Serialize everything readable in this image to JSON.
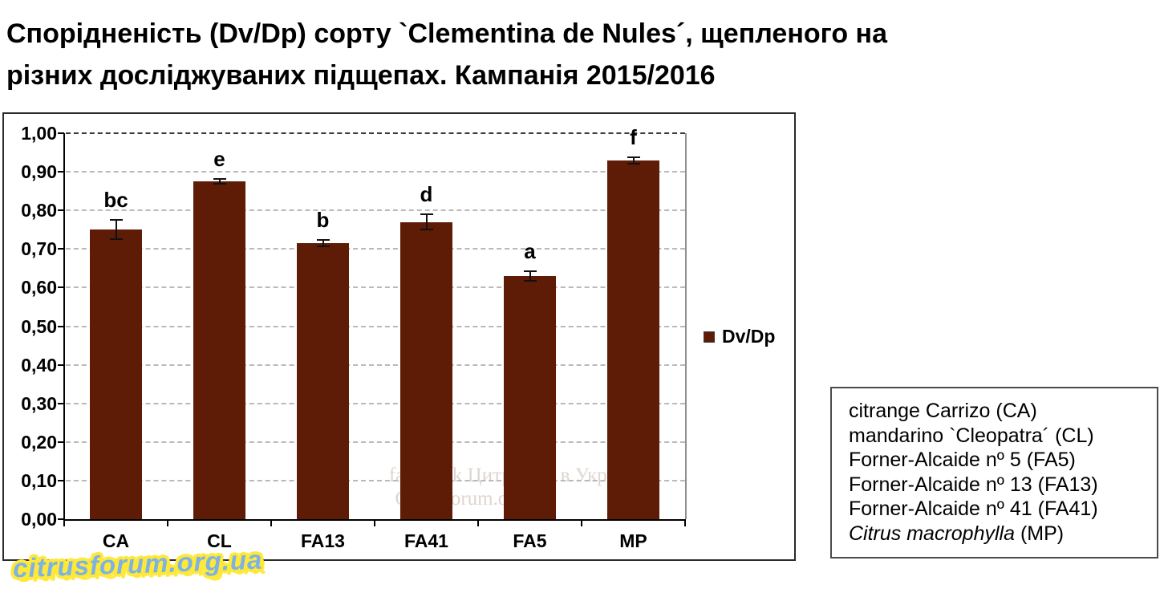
{
  "title_lines": [
    "Спорідненість (Dv/Dp) сорту `Clementina de Nules´, щепленого на",
    "різних досліджуваних підщепах. Кампанія 2015/2016"
  ],
  "chart_data": {
    "type": "bar",
    "categories": [
      "CA",
      "CL",
      "FA13",
      "FA41",
      "FA5",
      "MP"
    ],
    "values": [
      0.75,
      0.875,
      0.715,
      0.77,
      0.63,
      0.93
    ],
    "error_bars": [
      0.025,
      0.006,
      0.008,
      0.02,
      0.012,
      0.008
    ],
    "sig_letters": [
      "bc",
      "e",
      "b",
      "d",
      "a",
      "f"
    ],
    "series_name": "Dv/Dp",
    "title": "Спорідненість (Dv/Dp) сорту `Clementina de Nules´, щепленого на різних досліджуваних підщепах. Кампанія 2015/2016",
    "xlabel": "",
    "ylabel": "",
    "ylim": [
      0,
      1.0
    ],
    "ytick_step": 0.1,
    "ytick_labels": [
      "0,00",
      "0,10",
      "0,20",
      "0,30",
      "0,40",
      "0,50",
      "0,60",
      "0,70",
      "0,80",
      "0,90",
      "1,00"
    ],
    "grid": true,
    "legend_position": "right-of-plot",
    "bar_color": "#5e1b06"
  },
  "key_box": {
    "entries": [
      {
        "em": "",
        "text": "citrange Carrizo (CA)"
      },
      {
        "em": "",
        "text": "mandarino `Cleopatra´ (CL)"
      },
      {
        "em": "",
        "text": "Forner-Alcaide nº 5 (FA5)"
      },
      {
        "em": "",
        "text": "Forner-Alcaide nº 13 (FA13)"
      },
      {
        "em": "",
        "text": "Forner-Alcaide nº 41 (FA41)"
      },
      {
        "em": "Citrus macrophylla",
        "text": " (MP)"
      }
    ]
  },
  "watermarks": {
    "plot_line1": "facebook Цитрусові в Україні",
    "plot_line2": "Citrusforum.org.ua",
    "corner_logo": "citrusforum.org.ua"
  },
  "colors": {
    "bar": "#5e1b06",
    "logo_blue": "#7db2e4",
    "logo_yellow": "#ffe838"
  }
}
